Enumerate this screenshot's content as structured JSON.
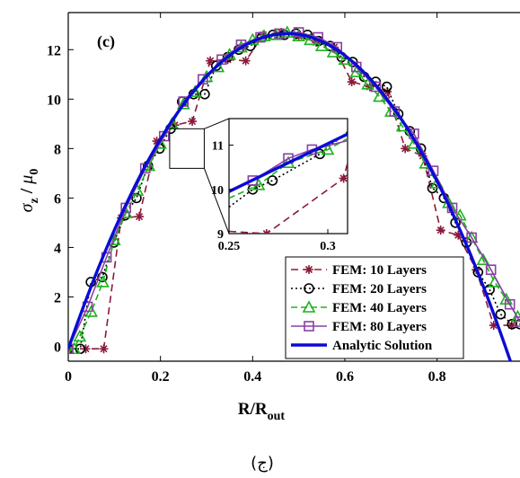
{
  "chart_data": {
    "type": "line",
    "panel_label": "(c)",
    "caption": "(ج)",
    "xlabel": {
      "main": "R/R",
      "sub": "out"
    },
    "ylabel": {
      "sigma": "σ",
      "sigma_sub": "z",
      "sep": " / ",
      "mu": "μ",
      "mu_sub": "0"
    },
    "xlim": [
      0,
      0.98
    ],
    "ylim": [
      -0.6,
      13.5
    ],
    "xticks": [
      0,
      0.2,
      0.4,
      0.6,
      0.8
    ],
    "xtick_labels": [
      "0",
      "0.2",
      "0.4",
      "0.6",
      "0.8"
    ],
    "yticks": [
      0,
      2,
      4,
      6,
      8,
      10,
      12
    ],
    "ytick_labels": [
      "0",
      "2",
      "4",
      "6",
      "8",
      "10",
      "12"
    ],
    "grid": false,
    "legend_position": "bottom-right",
    "colors": {
      "fem10": "#8b1a3a",
      "fem20": "#000000",
      "fem40": "#1db31d",
      "fem80": "#8a3fa6",
      "analytic": "#0b0bd6"
    },
    "series": [
      {
        "name": "FEM: 10 Layers",
        "color": "#8b1a3a",
        "dash": "8,5",
        "marker": "star",
        "x": [
          0,
          0.038,
          0.077,
          0.115,
          0.154,
          0.192,
          0.231,
          0.269,
          0.308,
          0.346,
          0.385,
          0.423,
          0.462,
          0.5,
          0.538,
          0.577,
          0.615,
          0.654,
          0.692,
          0.731,
          0.769,
          0.808,
          0.846,
          0.885,
          0.923,
          0.962
        ],
        "y": [
          -0.1,
          -0.1,
          -0.1,
          5.2,
          5.25,
          8.3,
          8.95,
          9.1,
          11.55,
          11.6,
          11.55,
          12.6,
          12.7,
          12.55,
          12.3,
          12.1,
          10.7,
          10.5,
          10.3,
          8.0,
          7.7,
          4.7,
          4.5,
          3.1,
          0.85,
          0.85
        ]
      },
      {
        "name": "FEM: 20 Layers",
        "color": "#000000",
        "dash": "2,3",
        "marker": "circle",
        "x": [
          0,
          0.026,
          0.049,
          0.074,
          0.099,
          0.123,
          0.148,
          0.173,
          0.198,
          0.222,
          0.247,
          0.272,
          0.296,
          0.321,
          0.346,
          0.37,
          0.395,
          0.42,
          0.444,
          0.469,
          0.494,
          0.519,
          0.543,
          0.568,
          0.593,
          0.617,
          0.642,
          0.667,
          0.691,
          0.716,
          0.741,
          0.765,
          0.79,
          0.815,
          0.84,
          0.864,
          0.889,
          0.914,
          0.938,
          0.963,
          0.98
        ],
        "y": [
          -0.1,
          -0.1,
          2.6,
          2.8,
          4.2,
          5.3,
          6.0,
          7.3,
          8.0,
          8.8,
          9.9,
          10.2,
          10.2,
          11.35,
          11.7,
          12.0,
          12.15,
          12.5,
          12.6,
          12.6,
          12.65,
          12.6,
          12.35,
          12.15,
          11.7,
          11.5,
          10.9,
          10.7,
          10.5,
          9.4,
          8.7,
          8.0,
          6.4,
          6.0,
          5.0,
          4.2,
          3.0,
          2.3,
          1.3,
          0.9,
          0.9
        ]
      },
      {
        "name": "FEM: 40 Layers",
        "color": "#1db31d",
        "dash": "7,4",
        "marker": "triangle",
        "x": [
          0,
          0.013,
          0.025,
          0.05,
          0.075,
          0.1,
          0.125,
          0.15,
          0.175,
          0.2,
          0.225,
          0.25,
          0.275,
          0.3,
          0.325,
          0.35,
          0.375,
          0.4,
          0.425,
          0.45,
          0.475,
          0.5,
          0.525,
          0.55,
          0.575,
          0.6,
          0.625,
          0.65,
          0.675,
          0.7,
          0.725,
          0.75,
          0.775,
          0.8,
          0.825,
          0.85,
          0.875,
          0.9,
          0.925,
          0.95,
          0.975
        ],
        "y": [
          -0.1,
          -0.1,
          0.4,
          1.4,
          2.6,
          4.3,
          5.4,
          6.3,
          7.3,
          8.2,
          9.0,
          9.8,
          10.3,
          10.9,
          11.3,
          11.8,
          12.1,
          12.4,
          12.55,
          12.6,
          12.7,
          12.55,
          12.4,
          12.15,
          11.9,
          11.6,
          11.1,
          10.6,
          10.1,
          9.5,
          8.9,
          8.2,
          7.4,
          6.6,
          5.8,
          5.3,
          4.4,
          3.5,
          2.6,
          1.9,
          1.2
        ]
      },
      {
        "name": "FEM: 80 Layers",
        "color": "#8a3fa6",
        "dash": "none",
        "marker": "square",
        "x": [
          0,
          0.042,
          0.083,
          0.125,
          0.167,
          0.208,
          0.25,
          0.292,
          0.333,
          0.375,
          0.417,
          0.458,
          0.5,
          0.542,
          0.583,
          0.625,
          0.667,
          0.708,
          0.75,
          0.792,
          0.833,
          0.875,
          0.917,
          0.958,
          0.98
        ],
        "y": [
          -0.1,
          1.6,
          3.6,
          5.6,
          7.2,
          8.5,
          9.9,
          10.8,
          11.6,
          12.2,
          12.5,
          12.65,
          12.7,
          12.5,
          12.1,
          11.3,
          10.5,
          9.5,
          8.6,
          7.1,
          5.6,
          4.4,
          3.1,
          1.7,
          1.0
        ]
      },
      {
        "name": "Analytic Solution",
        "color": "#0b0bd6",
        "dash": "none",
        "marker": "none",
        "function": "quadratic_peak",
        "peak_x": 0.475,
        "peak_y": 12.65,
        "x0": 0,
        "y0": -0.1
      }
    ],
    "inset": {
      "source_box": {
        "x": [
          0.22,
          0.295
        ],
        "y": [
          7.2,
          8.8
        ]
      },
      "xlim": [
        0.25,
        0.31
      ],
      "ylim": [
        9,
        11.6
      ],
      "xticks": [
        0.25,
        0.3
      ],
      "xtick_labels": [
        "0.25",
        "0.3"
      ],
      "yticks": [
        9,
        10,
        11
      ],
      "ytick_labels": [
        "9",
        "10",
        "11"
      ],
      "series": [
        {
          "name": "FEM: 10 Layers",
          "x": [
            0.25,
            0.269,
            0.308,
            0.31
          ],
          "y": [
            9.05,
            9.0,
            10.25,
            10.6
          ]
        },
        {
          "name": "FEM: 20 Layers",
          "x": [
            0.25,
            0.262,
            0.272,
            0.296,
            0.31
          ],
          "y": [
            9.6,
            10.0,
            10.2,
            10.8,
            11.3
          ]
        },
        {
          "name": "FEM: 40 Layers",
          "x": [
            0.25,
            0.265,
            0.28,
            0.3,
            0.31
          ],
          "y": [
            9.8,
            10.1,
            10.6,
            10.9,
            11.15
          ]
        },
        {
          "name": "FEM: 80 Layers",
          "x": [
            0.25,
            0.262,
            0.28,
            0.292,
            0.31
          ],
          "y": [
            9.95,
            10.2,
            10.7,
            10.9,
            11.1
          ]
        },
        {
          "name": "Analytic Solution",
          "x": [
            0.25,
            0.31
          ],
          "y": [
            9.95,
            11.25
          ]
        }
      ]
    }
  }
}
